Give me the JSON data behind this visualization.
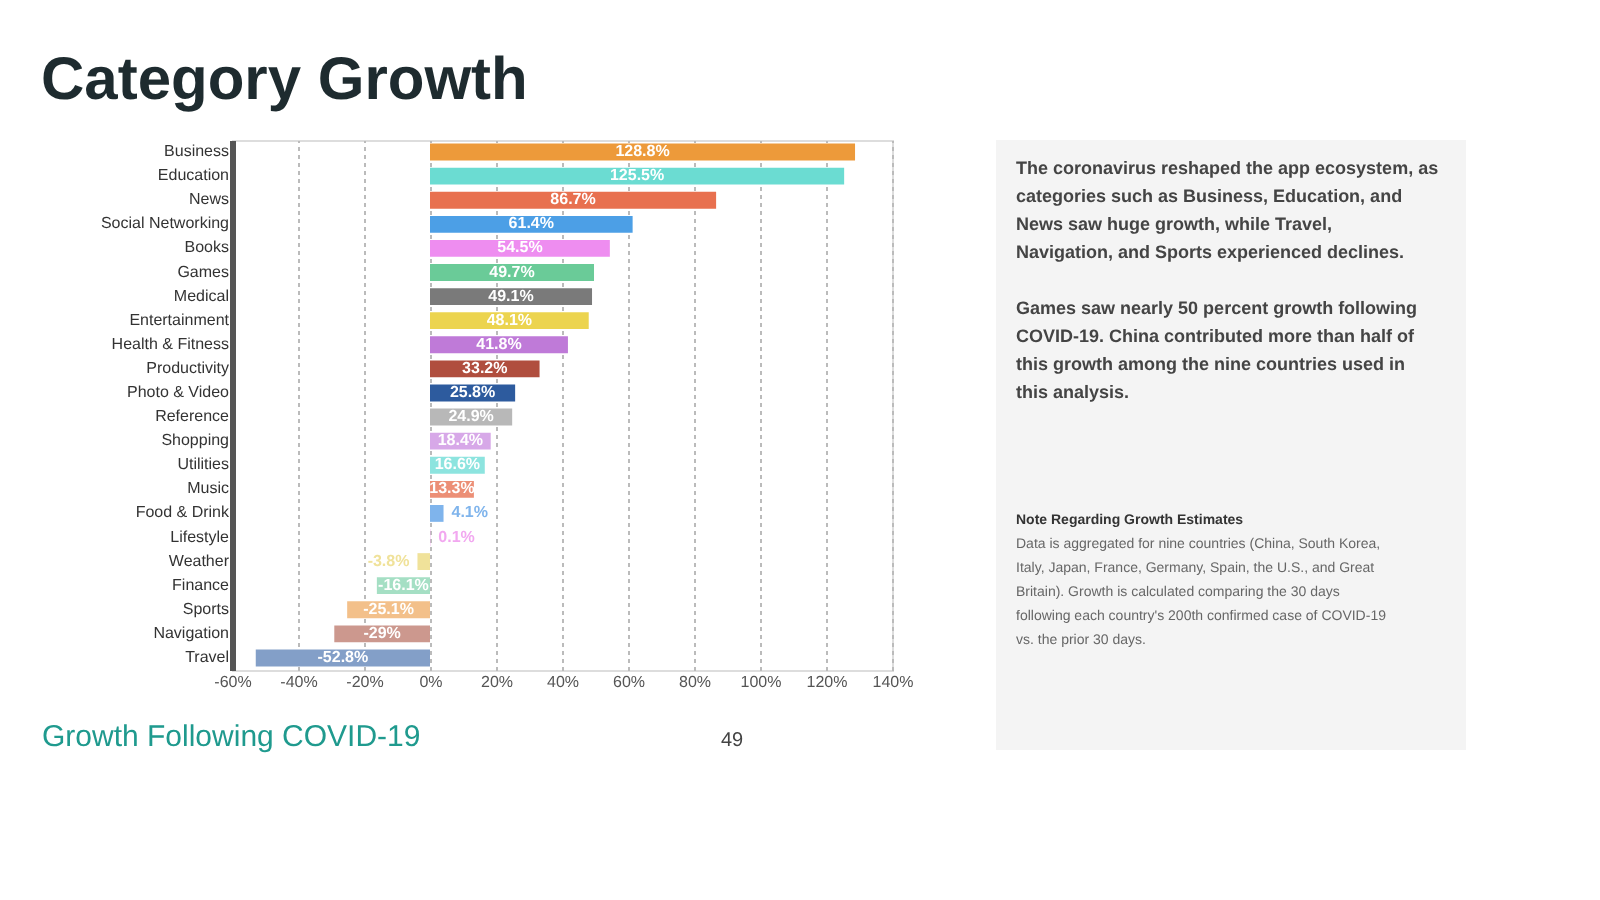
{
  "chart_data": {
    "type": "bar",
    "orientation": "horizontal",
    "title": "Category Growth",
    "categories": [
      "Business",
      "Education",
      "News",
      "Social Networking",
      "Books",
      "Games",
      "Medical",
      "Entertainment",
      "Health & Fitness",
      "Productivity",
      "Photo & Video",
      "Reference",
      "Shopping",
      "Utilities",
      "Music",
      "Food & Drink",
      "Lifestyle",
      "Weather",
      "Finance",
      "Sports",
      "Navigation",
      "Travel"
    ],
    "values": [
      128.8,
      125.5,
      86.7,
      61.4,
      54.5,
      49.7,
      49.1,
      48.1,
      41.8,
      33.2,
      25.8,
      24.9,
      18.4,
      16.6,
      13.3,
      4.1,
      0.1,
      -3.8,
      -16.1,
      -25.1,
      -29,
      -52.8
    ],
    "value_labels": [
      "128.8%",
      "125.5%",
      "86.7%",
      "61.4%",
      "54.5%",
      "49.7%",
      "49.1%",
      "48.1%",
      "41.8%",
      "33.2%",
      "25.8%",
      "24.9%",
      "18.4%",
      "16.6%",
      "13.3%",
      "4.1%",
      "0.1%",
      "-3.8%",
      "-16.1%",
      "-25.1%",
      "-29%",
      "-52.8%"
    ],
    "colors": [
      "#ed9a3a",
      "#6bdcd2",
      "#e8704f",
      "#4c9fe6",
      "#ee8df0",
      "#6acb98",
      "#7a7a7a",
      "#ecd44f",
      "#bf7ad8",
      "#b04e3e",
      "#2d5b9e",
      "#b8b8b8",
      "#d7a8e8",
      "#8de4df",
      "#ec8f76",
      "#7fb4ec",
      "#f2a8f0",
      "#f0e29a",
      "#a5dfc4",
      "#f3c08a",
      "#cc988e",
      "#839fc8"
    ],
    "xlim": [
      -60,
      140
    ],
    "xticks": [
      {
        "value": -60,
        "label": "-60%"
      },
      {
        "value": -40,
        "label": "-40%"
      },
      {
        "value": -20,
        "label": "-20%"
      },
      {
        "value": 0,
        "label": "0%"
      },
      {
        "value": 20,
        "label": "20%"
      },
      {
        "value": 40,
        "label": "40%"
      },
      {
        "value": 60,
        "label": "60%"
      },
      {
        "value": 80,
        "label": "80%"
      },
      {
        "value": 100,
        "label": "100%"
      },
      {
        "value": 120,
        "label": "120%"
      },
      {
        "value": 140,
        "label": "140%"
      }
    ],
    "grid": "x",
    "annotations": [
      "The coronavirus reshaped the app ecosystem, as categories such as Business, Education, and News saw huge growth, while Travel, Navigation, and Sports experienced declines.",
      "Games saw nearly 50 percent growth following COVID-19. China contributed more than half of this growth among the nine countries used in this analysis.",
      "Note Regarding Growth Estimates",
      "Data is aggregated for nine countries (China, South Korea, Italy, Japan, France, Germany, Spain, the U.S., and Great Britain). Growth is calculated comparing the 30 days following each country's 200th confirmed case of COVID-19 vs. the prior 30 days.",
      "Growth Following COVID-19",
      "49"
    ]
  }
}
